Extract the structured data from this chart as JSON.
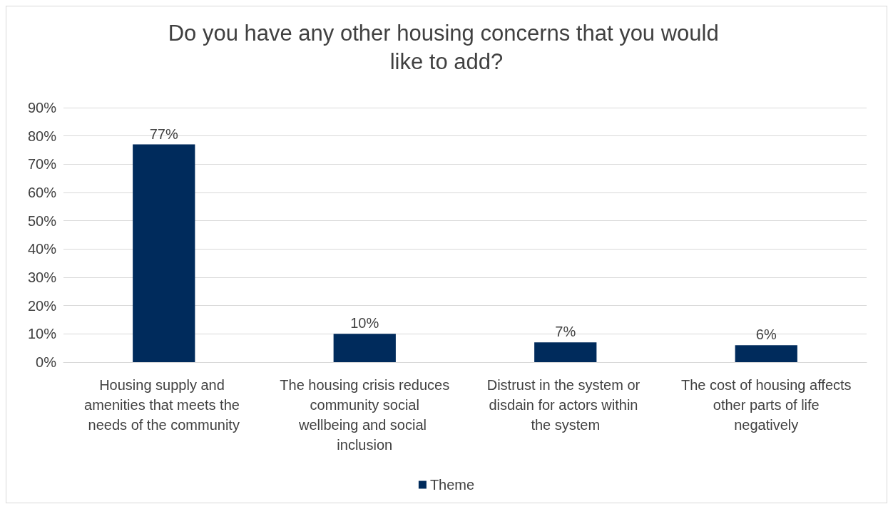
{
  "chart_data": {
    "type": "bar",
    "title": "Do you have any other housing concerns that you would like to add?",
    "categories": [
      "Housing supply and amenities that meets the needs of the community",
      "The housing crisis reduces community social wellbeing and social inclusion",
      "Distrust in the system or disdain for actors within the system",
      "The cost of housing affects other parts of life negatively"
    ],
    "series": [
      {
        "name": "Theme",
        "color": "#002b5c",
        "values": [
          77,
          10,
          7,
          6
        ],
        "value_labels": [
          "77%",
          "10%",
          "7%",
          "6%"
        ]
      }
    ],
    "ylim": [
      0,
      90
    ],
    "yticks": [
      {
        "value": 0,
        "label": "0%"
      },
      {
        "value": 10,
        "label": "10%"
      },
      {
        "value": 20,
        "label": "20%"
      },
      {
        "value": 30,
        "label": "30%"
      },
      {
        "value": 40,
        "label": "40%"
      },
      {
        "value": 50,
        "label": "50%"
      },
      {
        "value": 60,
        "label": "60%"
      },
      {
        "value": 70,
        "label": "70%"
      },
      {
        "value": 80,
        "label": "80%"
      },
      {
        "value": 90,
        "label": "90%"
      }
    ],
    "grid": "y",
    "legend": "bottom"
  }
}
